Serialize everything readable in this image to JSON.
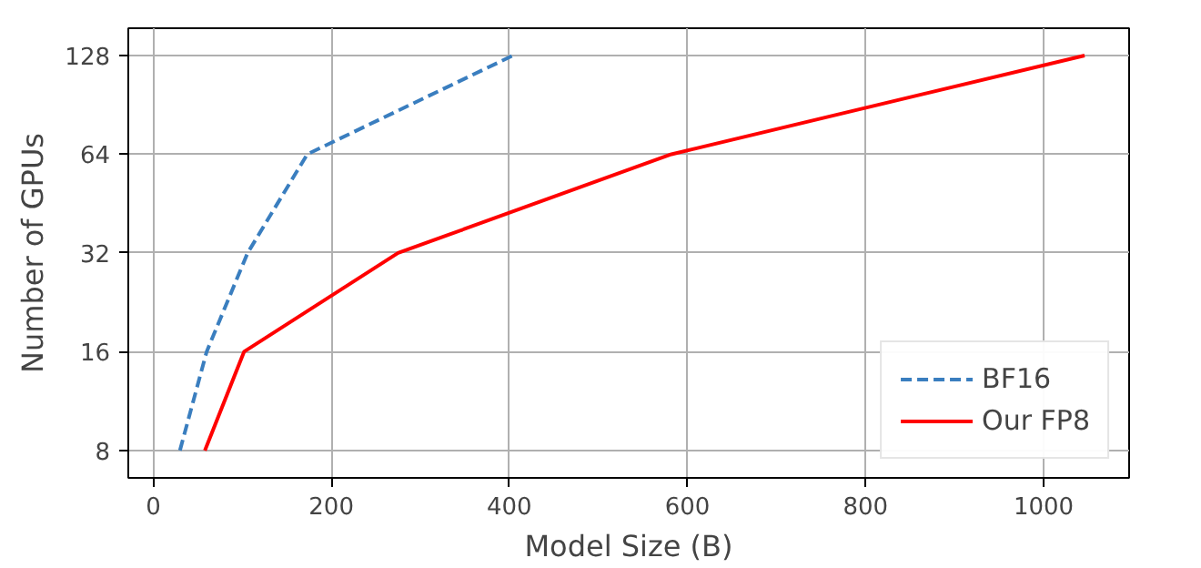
{
  "chart_data": {
    "type": "line",
    "xlabel": "Model Size (B)",
    "ylabel": "Number of GPUs",
    "log": "y",
    "grid": true,
    "legend": "bottom right",
    "xlim": [
      -28,
      1096
    ],
    "xticks": [
      0,
      200,
      400,
      600,
      800,
      1000
    ],
    "ylim": [
      6.6,
      155
    ],
    "yticks": [
      8,
      16,
      32,
      64,
      128
    ],
    "series": [
      {
        "name": "BF16",
        "color": "#3a7ebf",
        "line_style": "dashed",
        "x": [
          30,
          60,
          106,
          173,
          404
        ],
        "values": [
          8,
          16,
          32,
          64,
          128
        ]
      },
      {
        "name": "Our FP8",
        "color": "#ff0000",
        "line_style": "solid",
        "x": [
          58,
          102,
          275,
          582,
          1046
        ],
        "values": [
          8,
          16,
          32,
          64,
          128
        ]
      }
    ]
  }
}
